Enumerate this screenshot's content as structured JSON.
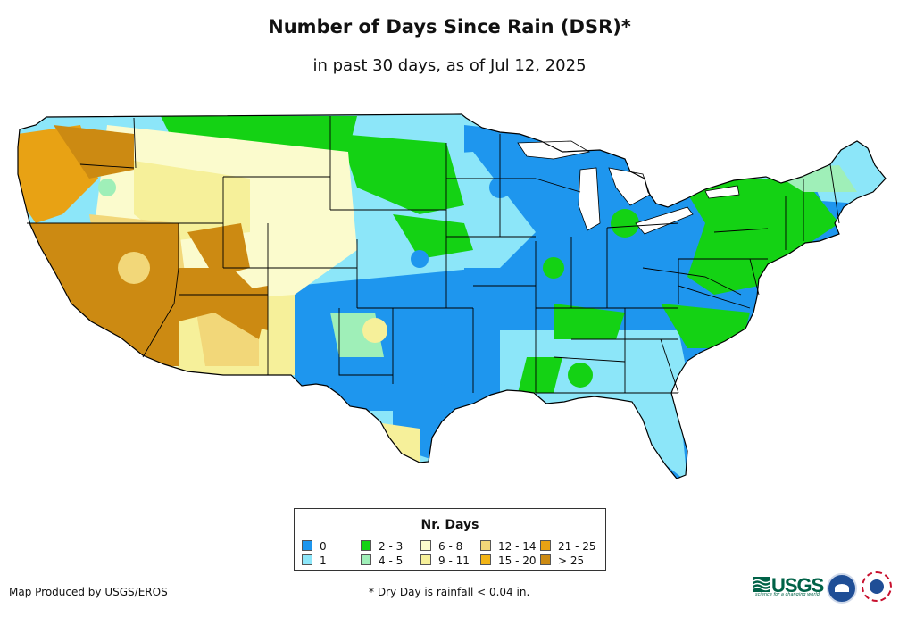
{
  "title": "Number of Days Since Rain (DSR)*",
  "subtitle": "in past 30 days, as of Jul 12, 2025",
  "legend": {
    "title": "Nr. Days",
    "items": [
      {
        "label": "0",
        "color": "#1e96ee"
      },
      {
        "label": "1",
        "color": "#8ce6f9"
      },
      {
        "label": "2 - 3",
        "color": "#14d214"
      },
      {
        "label": "4 - 5",
        "color": "#9fefb8"
      },
      {
        "label": "6 - 8",
        "color": "#fbfbcd"
      },
      {
        "label": "9 - 11",
        "color": "#f6f09a"
      },
      {
        "label": "12 - 14",
        "color": "#f2d779"
      },
      {
        "label": "15 - 20",
        "color": "#f2b415"
      },
      {
        "label": "21 - 25",
        "color": "#e8a214"
      },
      {
        "label": "> 25",
        "color": "#cc8a12"
      }
    ]
  },
  "footer": {
    "credit": "Map Produced by USGS/EROS",
    "note": "* Dry Day is rainfall < 0.04 in."
  },
  "logos": {
    "usgs": "USGS",
    "usgs_tagline": "science for a changing world"
  }
}
